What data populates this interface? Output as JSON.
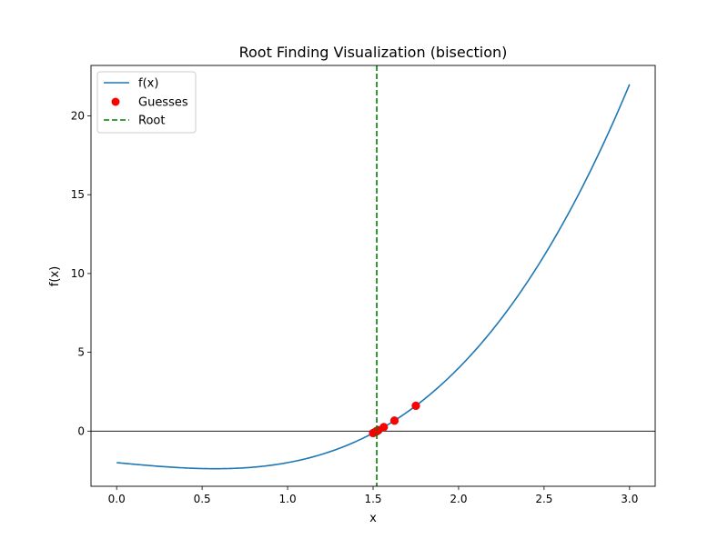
{
  "chart_data": {
    "type": "line",
    "title": "Root Finding Visualization (bisection)",
    "xlabel": "x",
    "ylabel": "f(x)",
    "xlim": [
      -0.15,
      3.15
    ],
    "ylim": [
      -3.5,
      23.2
    ],
    "xticks": [
      0.0,
      0.5,
      1.0,
      1.5,
      2.0,
      2.5,
      3.0
    ],
    "xtick_labels": [
      "0.0",
      "0.5",
      "1.0",
      "1.5",
      "2.0",
      "2.5",
      "3.0"
    ],
    "yticks": [
      0,
      5,
      10,
      15,
      20
    ],
    "ytick_labels": [
      "0",
      "5",
      "10",
      "15",
      "20"
    ],
    "grid": false,
    "legend_position": "top-left",
    "function": "x^3 - x - 2",
    "series": [
      {
        "name": "f(x)",
        "kind": "line",
        "color": "#1f77b4",
        "x": [
          0.0,
          0.1,
          0.2,
          0.3,
          0.4,
          0.5,
          0.6,
          0.7,
          0.8,
          0.9,
          1.0,
          1.1,
          1.2,
          1.3,
          1.4,
          1.5,
          1.6,
          1.7,
          1.8,
          1.9,
          2.0,
          2.1,
          2.2,
          2.3,
          2.4,
          2.5,
          2.6,
          2.7,
          2.8,
          2.9,
          3.0
        ],
        "y": [
          -2.0,
          -2.099,
          -2.192,
          -2.273,
          -2.336,
          -2.375,
          -2.384,
          -2.357,
          -2.288,
          -2.171,
          -2.0,
          -1.769,
          -1.472,
          -1.103,
          -0.656,
          -0.125,
          0.496,
          1.213,
          2.032,
          2.959,
          4.0,
          5.161,
          6.448,
          7.867,
          9.424,
          11.125,
          12.976,
          14.983,
          17.152,
          19.489,
          22.0
        ]
      },
      {
        "name": "Guesses",
        "kind": "scatter",
        "color": "#ff0000",
        "x": [
          1.5,
          1.75,
          1.625,
          1.5625,
          1.53125,
          1.515625,
          1.5234375,
          1.51953125,
          1.521484375,
          1.5205078125
        ],
        "y": [
          -0.125,
          1.609,
          0.666,
          0.252,
          0.059,
          -0.034,
          0.012,
          -0.011,
          0.001,
          -0.005
        ]
      },
      {
        "name": "Root",
        "kind": "vline",
        "color": "#008000",
        "x": 1.5214
      }
    ],
    "hline_y": 0
  }
}
